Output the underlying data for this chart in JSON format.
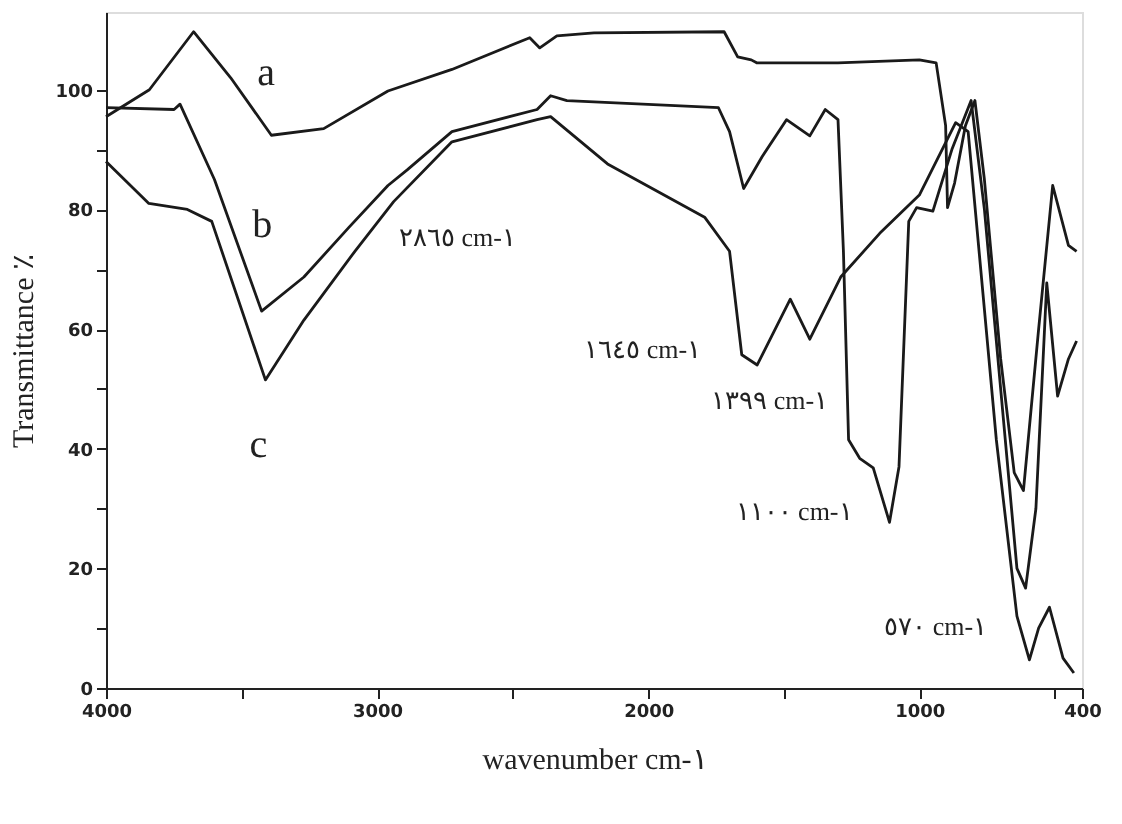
{
  "chart_data": {
    "type": "line",
    "xlabel": "wavenumber cm-١",
    "ylabel": "Transmittance ٪",
    "xlim": [
      4000,
      400
    ],
    "ylim": [
      0,
      113
    ],
    "xticks": [
      4000,
      {
        "value": 3500,
        "label": null
      },
      3000,
      {
        "value": 2500,
        "label": null
      },
      2000,
      {
        "value": 1500,
        "label": null
      },
      1000,
      {
        "value": 500,
        "label": null
      },
      400
    ],
    "yticks": [
      0,
      {
        "value": 10,
        "label": null
      },
      20,
      {
        "value": 30,
        "label": null
      },
      40,
      {
        "value": 50,
        "label": null
      },
      60,
      {
        "value": 70,
        "label": null
      },
      80,
      {
        "value": 90,
        "label": null
      },
      100
    ],
    "grid": false,
    "marker": "none",
    "line_style": "solid",
    "series": [
      {
        "color": "#1a1a1a",
        "x": [
          4000,
          3840,
          3677,
          3540,
          3390,
          3197,
          2960,
          2724,
          2437,
          2400,
          2337,
          2200,
          1720,
          1670,
          1620,
          1600,
          1300,
          1000,
          938,
          903,
          896,
          870,
          830,
          795,
          760,
          700,
          650,
          616,
          560,
          508,
          450,
          420
        ],
        "values": [
          95.5,
          100,
          109.7,
          102,
          92.4,
          93.5,
          99.8,
          103.4,
          108.7,
          107,
          109,
          109.5,
          109.7,
          105.5,
          105,
          104.5,
          104.5,
          105,
          104.5,
          94,
          80.3,
          84.4,
          94,
          98.2,
          85,
          55,
          36,
          33,
          60,
          84,
          74,
          73
        ]
      },
      {
        "color": "#1a1a1a",
        "x": [
          4000,
          3749,
          3727,
          3600,
          3426,
          3270,
          3104,
          2960,
          2889,
          2724,
          2410,
          2360,
          2300,
          1741,
          1700,
          1648,
          1580,
          1490,
          1404,
          1347,
          1300,
          1280,
          1261,
          1220,
          1170,
          1110,
          1075,
          1039,
          1010,
          950,
          880,
          809,
          760,
          700,
          640,
          608,
          570,
          530,
          490,
          450,
          420
        ],
        "values": [
          97,
          96.7,
          97.6,
          85,
          63,
          68.7,
          77,
          84,
          86.6,
          93,
          96.7,
          99,
          98.2,
          97,
          93,
          83.5,
          88.8,
          95,
          92.3,
          96.7,
          95,
          73,
          41.5,
          38.4,
          36.8,
          27.7,
          37,
          78,
          80.3,
          79.7,
          90,
          98.2,
          80,
          50,
          20,
          16.7,
          30,
          67.7,
          48.8,
          55,
          58
        ]
      },
      {
        "color": "#1a1a1a",
        "x": [
          4000,
          3842,
          3700,
          3610,
          3412,
          3270,
          3082,
          2939,
          2724,
          2410,
          2360,
          2150,
          1792,
          1700,
          1655,
          1598,
          1476,
          1404,
          1290,
          1146,
          1000,
          866,
          820,
          716,
          640,
          594,
          560,
          520,
          470,
          430
        ],
        "values": [
          88,
          81,
          80,
          78,
          51.5,
          61.5,
          73,
          81.3,
          91.3,
          95,
          95.5,
          87.6,
          78.7,
          73,
          55.7,
          54,
          65,
          58.3,
          68.7,
          76,
          82.4,
          94.5,
          93,
          41.5,
          12,
          4.7,
          10,
          13.5,
          5,
          2.5
        ]
      }
    ],
    "annotations": [
      "a",
      "b",
      "c",
      "٢٨٦٥ cm-١",
      "١٦٤٥ cm-١",
      "١٣٩٩ cm-١",
      "١١٠٠ cm-١",
      "٥٧٠ cm-١"
    ]
  }
}
